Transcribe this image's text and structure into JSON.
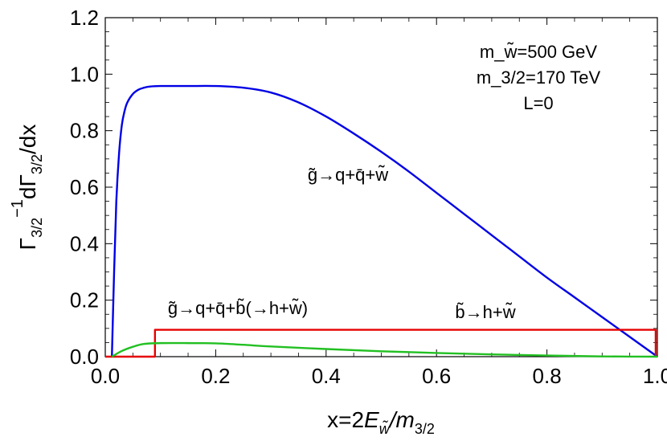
{
  "chart_data": {
    "type": "line",
    "xlabel": "x=2E_w̃/m_3/2",
    "ylabel": "Γ_3/2^-1 dΓ_3/2/dx",
    "xlim": [
      0.0,
      1.0
    ],
    "ylim": [
      0.0,
      1.2
    ],
    "x_ticks": [
      "0.0",
      "0.2",
      "0.4",
      "0.6",
      "0.8",
      "1.0"
    ],
    "y_ticks": [
      "0.0",
      "0.2",
      "0.4",
      "0.6",
      "0.8",
      "1.0",
      "1.2"
    ],
    "grid": false,
    "parameters": [
      "m_w̃=500 GeV",
      "m_3/2=170 TeV",
      "L=0"
    ],
    "series": [
      {
        "name": "g̃→q+q̄+w̃",
        "color": "#0000e6",
        "x": [
          0.012,
          0.016,
          0.02,
          0.025,
          0.03,
          0.035,
          0.04,
          0.05,
          0.06,
          0.07,
          0.08,
          0.1,
          0.15,
          0.2,
          0.25,
          0.3,
          0.35,
          0.4,
          0.45,
          0.5,
          0.55,
          0.6,
          0.65,
          0.7,
          0.75,
          0.8,
          0.85,
          0.9,
          0.95,
          1.0
        ],
        "y": [
          0.0,
          0.3,
          0.55,
          0.72,
          0.82,
          0.87,
          0.9,
          0.93,
          0.945,
          0.952,
          0.956,
          0.958,
          0.958,
          0.958,
          0.952,
          0.935,
          0.9,
          0.85,
          0.79,
          0.725,
          0.655,
          0.58,
          0.505,
          0.43,
          0.355,
          0.28,
          0.21,
          0.14,
          0.07,
          0.0
        ]
      },
      {
        "name": "b̃→h+w̃",
        "color": "#e60000",
        "x": [
          0.0,
          0.09,
          0.09,
          0.997,
          0.997
        ],
        "y": [
          0.0,
          0.0,
          0.095,
          0.095,
          0.0
        ]
      },
      {
        "name": "g̃→q+q̄+b̃(→h+w̃)",
        "color": "#22c022",
        "x": [
          0.012,
          0.03,
          0.05,
          0.07,
          0.1,
          0.15,
          0.2,
          0.25,
          0.3,
          0.4,
          0.5,
          0.6,
          0.7,
          0.8,
          0.9,
          0.95,
          1.0
        ],
        "y": [
          0.0,
          0.02,
          0.035,
          0.045,
          0.048,
          0.048,
          0.047,
          0.042,
          0.036,
          0.027,
          0.019,
          0.013,
          0.008,
          0.004,
          0.001,
          0.0003,
          0.0
        ]
      }
    ]
  }
}
